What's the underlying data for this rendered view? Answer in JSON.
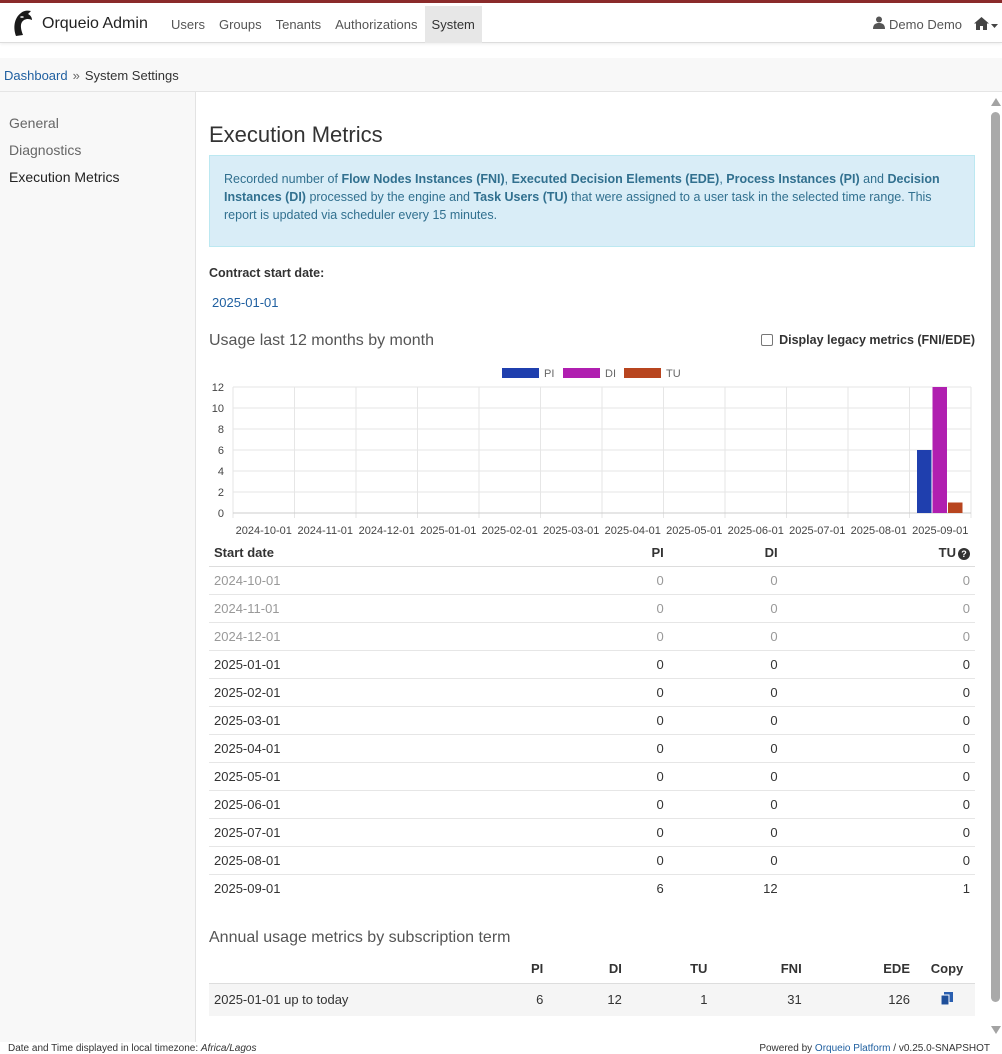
{
  "header": {
    "brand": "Orqueio Admin",
    "nav": [
      "Users",
      "Groups",
      "Tenants",
      "Authorizations",
      "System"
    ],
    "active_nav": "System",
    "user": "Demo Demo"
  },
  "breadcrumb": {
    "home": "Dashboard",
    "separator": "»",
    "current": "System Settings"
  },
  "sidebar": {
    "items": [
      "General",
      "Diagnostics",
      "Execution Metrics"
    ],
    "active": "Execution Metrics"
  },
  "page": {
    "title": "Execution Metrics",
    "info": {
      "t1": "Recorded number of ",
      "b1": "Flow Nodes Instances (FNI)",
      "t2": ", ",
      "b2": "Executed Decision Elements (EDE)",
      "t3": ", ",
      "b3": "Process Instances (PI)",
      "t4": " and ",
      "b4": "Decision Instances (DI)",
      "t5": " processed by the engine and ",
      "b5": "Task Users (TU)",
      "t6": " that were assigned to a user task in the selected time range. This report is updated via scheduler every 15 minutes."
    },
    "contract_label": "Contract start date:",
    "contract_date": "2025-01-01",
    "usage_title": "Usage last 12 months by month",
    "legacy_label": "Display legacy metrics (FNI/EDE)"
  },
  "chart_data": {
    "type": "bar",
    "categories": [
      "2024-10-01",
      "2024-11-01",
      "2024-12-01",
      "2025-01-01",
      "2025-02-01",
      "2025-03-01",
      "2025-04-01",
      "2025-05-01",
      "2025-06-01",
      "2025-07-01",
      "2025-08-01",
      "2025-09-01"
    ],
    "series": [
      {
        "name": "PI",
        "color": "#1f3fae",
        "values": [
          0,
          0,
          0,
          0,
          0,
          0,
          0,
          0,
          0,
          0,
          0,
          6
        ]
      },
      {
        "name": "DI",
        "color": "#b01fb0",
        "values": [
          0,
          0,
          0,
          0,
          0,
          0,
          0,
          0,
          0,
          0,
          0,
          12
        ]
      },
      {
        "name": "TU",
        "color": "#b8451f",
        "values": [
          0,
          0,
          0,
          0,
          0,
          0,
          0,
          0,
          0,
          0,
          0,
          1
        ]
      }
    ],
    "ylim": [
      0,
      12
    ],
    "yticks": [
      0,
      2,
      4,
      6,
      8,
      10,
      12
    ],
    "legend": "top-center",
    "grid": true
  },
  "monthly_table": {
    "headers": [
      "Start date",
      "PI",
      "DI",
      "TU"
    ],
    "rows": [
      [
        "2024-10-01",
        "0",
        "0",
        "0"
      ],
      [
        "2024-11-01",
        "0",
        "0",
        "0"
      ],
      [
        "2024-12-01",
        "0",
        "0",
        "0"
      ],
      [
        "2025-01-01",
        "0",
        "0",
        "0"
      ],
      [
        "2025-02-01",
        "0",
        "0",
        "0"
      ],
      [
        "2025-03-01",
        "0",
        "0",
        "0"
      ],
      [
        "2025-04-01",
        "0",
        "0",
        "0"
      ],
      [
        "2025-05-01",
        "0",
        "0",
        "0"
      ],
      [
        "2025-06-01",
        "0",
        "0",
        "0"
      ],
      [
        "2025-07-01",
        "0",
        "0",
        "0"
      ],
      [
        "2025-08-01",
        "0",
        "0",
        "0"
      ],
      [
        "2025-09-01",
        "6",
        "12",
        "1"
      ]
    ],
    "past_rows": 3
  },
  "annual": {
    "title": "Annual usage metrics by subscription term",
    "headers": [
      "",
      "PI",
      "DI",
      "TU",
      "FNI",
      "EDE",
      "Copy"
    ],
    "row": [
      "2025-01-01 up to today",
      "6",
      "12",
      "1",
      "31",
      "126"
    ]
  },
  "footer": {
    "tz_prefix": "Date and Time displayed in local timezone: ",
    "tz": "Africa/Lagos",
    "powered_prefix": "Powered by ",
    "powered_link": "Orqueio Platform",
    "version": " / v0.25.0-SNAPSHOT"
  }
}
